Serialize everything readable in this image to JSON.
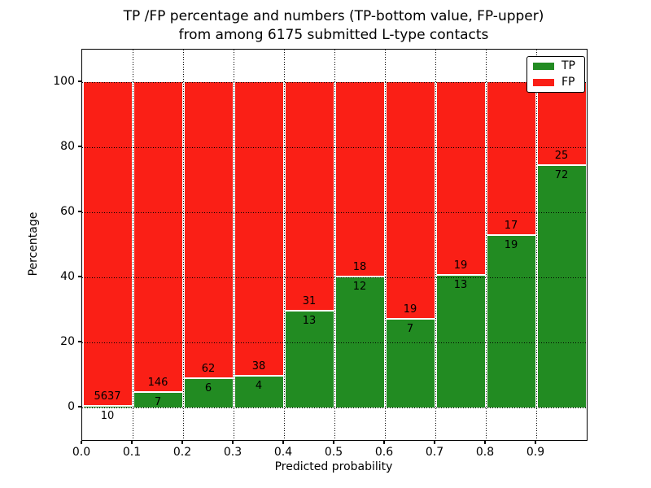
{
  "chart_data": {
    "type": "bar",
    "stacked": true,
    "normalized_to_percent": true,
    "title_line1": "TP /FP percentage and numbers (TP-bottom value, FP-upper)",
    "title_line2": "from among 6175 submitted L-type contacts",
    "xlabel": "Predicted probability",
    "ylabel": "Percentage",
    "bin_edges": [
      0.0,
      0.1,
      0.2,
      0.3,
      0.4,
      0.5,
      0.6,
      0.7,
      0.8,
      0.9,
      1.0
    ],
    "series": [
      {
        "name": "TP",
        "color": "#228b22",
        "counts": [
          10,
          7,
          6,
          4,
          13,
          12,
          7,
          13,
          19,
          72
        ],
        "percent": [
          0.18,
          4.58,
          8.82,
          9.52,
          29.55,
          40.0,
          26.92,
          40.63,
          52.78,
          74.23
        ]
      },
      {
        "name": "FP",
        "color": "#fa1f16",
        "counts": [
          5637,
          146,
          62,
          38,
          31,
          18,
          19,
          19,
          17,
          25
        ],
        "percent": [
          99.82,
          95.42,
          91.18,
          90.48,
          70.45,
          60.0,
          73.08,
          59.38,
          47.22,
          25.77
        ]
      }
    ],
    "xticks": [
      0.0,
      0.1,
      0.2,
      0.3,
      0.4,
      0.5,
      0.6,
      0.7,
      0.8,
      0.9
    ],
    "yticks": [
      0,
      20,
      40,
      60,
      80,
      100
    ],
    "xlim": [
      0.0,
      1.0
    ],
    "ylim": [
      -10,
      110
    ],
    "grid": {
      "on": true,
      "style": "dotted"
    },
    "legend": {
      "position": "upper right",
      "items": [
        {
          "label": "TP",
          "color": "#228b22"
        },
        {
          "label": "FP",
          "color": "#fa1f16"
        }
      ]
    }
  }
}
